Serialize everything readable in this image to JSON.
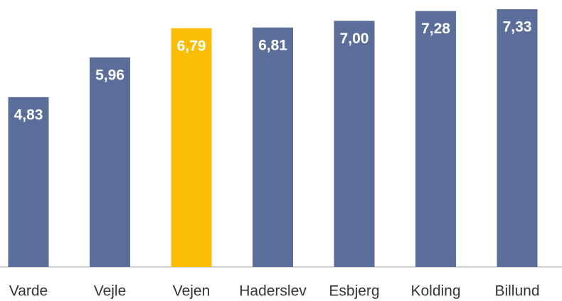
{
  "chart_data": {
    "type": "bar",
    "categories": [
      "Varde",
      "Vejle",
      "Vejen",
      "Haderslev",
      "Esbjerg",
      "Kolding",
      "Billund"
    ],
    "values": [
      4.83,
      5.96,
      6.79,
      6.81,
      7.0,
      7.28,
      7.33
    ],
    "value_labels": [
      "4,83",
      "5,96",
      "6,79",
      "6,81",
      "7,00",
      "7,28",
      "7,33"
    ],
    "colors": [
      "#5b6e9a",
      "#5b6e9a",
      "#fbbc04",
      "#5b6e9a",
      "#5b6e9a",
      "#5b6e9a",
      "#5b6e9a"
    ]
  }
}
